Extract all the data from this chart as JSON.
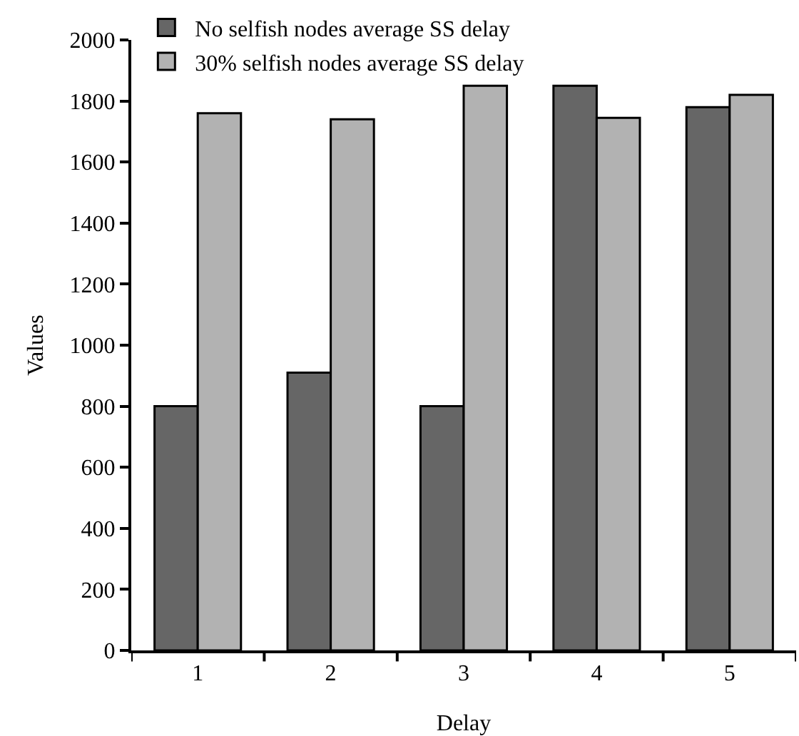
{
  "chart_data": {
    "type": "bar",
    "xlabel": "Delay",
    "ylabel": "Values",
    "categories": [
      "1",
      "2",
      "3",
      "4",
      "5"
    ],
    "series": [
      {
        "name": "No selfish nodes average SS delay",
        "color": "#666666",
        "values": [
          800,
          910,
          800,
          1850,
          1780
        ]
      },
      {
        "name": "30% selfish nodes average SS delay",
        "color": "#b2b2b2",
        "values": [
          1760,
          1740,
          1850,
          1745,
          1820
        ]
      }
    ],
    "ylim": [
      0,
      2000
    ],
    "yticks": [
      0,
      200,
      400,
      600,
      800,
      1000,
      1200,
      1400,
      1600,
      1800,
      2000
    ],
    "grid": false,
    "legend": "top left"
  }
}
